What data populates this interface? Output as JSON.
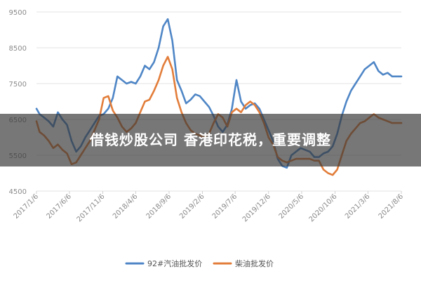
{
  "chart_data": {
    "type": "line",
    "title": "",
    "xlabel": "",
    "ylabel": "",
    "ylim": [
      4500,
      9500
    ],
    "yticks": [
      4500,
      5500,
      6500,
      7500,
      8500,
      9500
    ],
    "x_start": "2017/1/6",
    "x_end": "2021/8/6",
    "xticks": [
      "2017/1/6",
      "2017/6/6",
      "2017/11/6",
      "2018/4/6",
      "2018/9/6",
      "2019/2/6",
      "2019/7/6",
      "2019/12/6",
      "2020/5/6",
      "2020/10/6",
      "2021/3/6",
      "2021/8/6"
    ],
    "grid": "horizontal",
    "legend_position": "bottom",
    "series": [
      {
        "name": "92#汽油批发价",
        "color": "#4f86c6",
        "x": [
          "2017/1/6",
          "2017/1/20",
          "2017/2/10",
          "2017/3/3",
          "2017/3/24",
          "2017/4/14",
          "2017/5/5",
          "2017/5/26",
          "2017/6/16",
          "2017/7/7",
          "2017/7/28",
          "2017/8/18",
          "2017/9/8",
          "2017/9/29",
          "2017/10/20",
          "2017/11/10",
          "2017/12/1",
          "2017/12/22",
          "2018/1/12",
          "2018/2/2",
          "2018/2/23",
          "2018/3/16",
          "2018/4/6",
          "2018/4/27",
          "2018/5/18",
          "2018/6/8",
          "2018/6/29",
          "2018/7/20",
          "2018/8/10",
          "2018/8/31",
          "2018/9/21",
          "2018/10/12",
          "2018/11/2",
          "2018/11/23",
          "2018/12/14",
          "2019/1/4",
          "2019/1/25",
          "2019/2/15",
          "2019/3/8",
          "2019/3/29",
          "2019/4/19",
          "2019/5/10",
          "2019/5/31",
          "2019/6/21",
          "2019/7/12",
          "2019/8/2",
          "2019/8/23",
          "2019/9/13",
          "2019/10/4",
          "2019/10/25",
          "2019/11/15",
          "2019/12/6",
          "2019/12/27",
          "2020/1/17",
          "2020/2/7",
          "2020/2/28",
          "2020/3/20",
          "2020/4/10",
          "2020/5/1",
          "2020/5/22",
          "2020/6/12",
          "2020/7/3",
          "2020/7/24",
          "2020/8/14",
          "2020/9/4",
          "2020/9/25",
          "2020/10/16",
          "2020/11/6",
          "2020/11/27",
          "2020/12/18",
          "2021/1/8",
          "2021/1/29",
          "2021/2/19",
          "2021/3/12",
          "2021/4/2",
          "2021/4/23",
          "2021/5/14",
          "2021/6/4",
          "2021/6/25",
          "2021/7/16",
          "2021/8/6"
        ],
        "values": [
          6800,
          6650,
          6550,
          6450,
          6300,
          6700,
          6500,
          6350,
          5900,
          5600,
          5750,
          6000,
          6200,
          6400,
          6600,
          6650,
          6800,
          7100,
          7700,
          7600,
          7500,
          7550,
          7500,
          7700,
          8000,
          7900,
          8100,
          8500,
          9100,
          9300,
          8700,
          7600,
          7300,
          6950,
          7050,
          7200,
          7150,
          7000,
          6850,
          6600,
          6300,
          6150,
          6350,
          6800,
          7600,
          7000,
          6800,
          6900,
          6950,
          6800,
          6500,
          6200,
          5900,
          5400,
          5200,
          5150,
          5500,
          5600,
          5700,
          5650,
          5600,
          5450,
          5450,
          5550,
          5600,
          5750,
          6100,
          6600,
          7000,
          7300,
          7500,
          7700,
          7900,
          8000,
          8100,
          7850,
          7750,
          7800,
          7700,
          7700,
          7700
        ]
      },
      {
        "name": "柴油批发价",
        "color": "#e27d3a",
        "x": [
          "2017/1/6",
          "2017/1/20",
          "2017/2/10",
          "2017/3/3",
          "2017/3/24",
          "2017/4/14",
          "2017/5/5",
          "2017/5/26",
          "2017/6/16",
          "2017/7/7",
          "2017/7/28",
          "2017/8/18",
          "2017/9/8",
          "2017/9/29",
          "2017/10/20",
          "2017/11/10",
          "2017/12/1",
          "2017/12/22",
          "2018/1/12",
          "2018/2/2",
          "2018/2/23",
          "2018/3/16",
          "2018/4/6",
          "2018/4/27",
          "2018/5/18",
          "2018/6/8",
          "2018/6/29",
          "2018/7/20",
          "2018/8/10",
          "2018/8/31",
          "2018/9/21",
          "2018/10/12",
          "2018/11/2",
          "2018/11/23",
          "2018/12/14",
          "2019/1/4",
          "2019/1/25",
          "2019/2/15",
          "2019/3/8",
          "2019/3/29",
          "2019/4/19",
          "2019/5/10",
          "2019/5/31",
          "2019/6/21",
          "2019/7/12",
          "2019/8/2",
          "2019/8/23",
          "2019/9/13",
          "2019/10/4",
          "2019/10/25",
          "2019/11/15",
          "2019/12/6",
          "2019/12/27",
          "2020/1/17",
          "2020/2/7",
          "2020/2/28",
          "2020/3/20",
          "2020/4/10",
          "2020/5/1",
          "2020/5/22",
          "2020/6/12",
          "2020/7/3",
          "2020/7/24",
          "2020/8/14",
          "2020/9/4",
          "2020/9/25",
          "2020/10/16",
          "2020/11/6",
          "2020/11/27",
          "2020/12/18",
          "2021/1/8",
          "2021/1/29",
          "2021/2/19",
          "2021/3/12",
          "2021/4/2",
          "2021/4/23",
          "2021/5/14",
          "2021/6/4",
          "2021/6/25",
          "2021/7/16",
          "2021/8/6"
        ],
        "values": [
          6450,
          6150,
          6050,
          5900,
          5700,
          5800,
          5650,
          5550,
          5250,
          5300,
          5500,
          5700,
          5900,
          6200,
          6500,
          7100,
          7150,
          6750,
          6550,
          6300,
          6150,
          6250,
          6400,
          6700,
          7000,
          7050,
          7300,
          7600,
          8000,
          8250,
          7900,
          7100,
          6700,
          6400,
          6200,
          6100,
          6050,
          6000,
          6100,
          6400,
          6650,
          6550,
          6300,
          6700,
          6800,
          6700,
          6900,
          7000,
          6900,
          6700,
          6400,
          6000,
          5800,
          5450,
          5350,
          5300,
          5350,
          5400,
          5400,
          5400,
          5400,
          5350,
          5350,
          5100,
          5000,
          4950,
          5100,
          5500,
          5900,
          6100,
          6250,
          6400,
          6450,
          6550,
          6650,
          6550,
          6500,
          6450,
          6400,
          6400,
          6400
        ]
      }
    ]
  },
  "overlay": {
    "headline": "借钱炒股公司 香港印花税，重要调整"
  },
  "colors": {
    "grid": "#e3e3e3",
    "axis_text": "#8a8a8a",
    "overlay_bg": "rgba(55,55,55,0.68)",
    "overlay_text": "#ffffff"
  }
}
